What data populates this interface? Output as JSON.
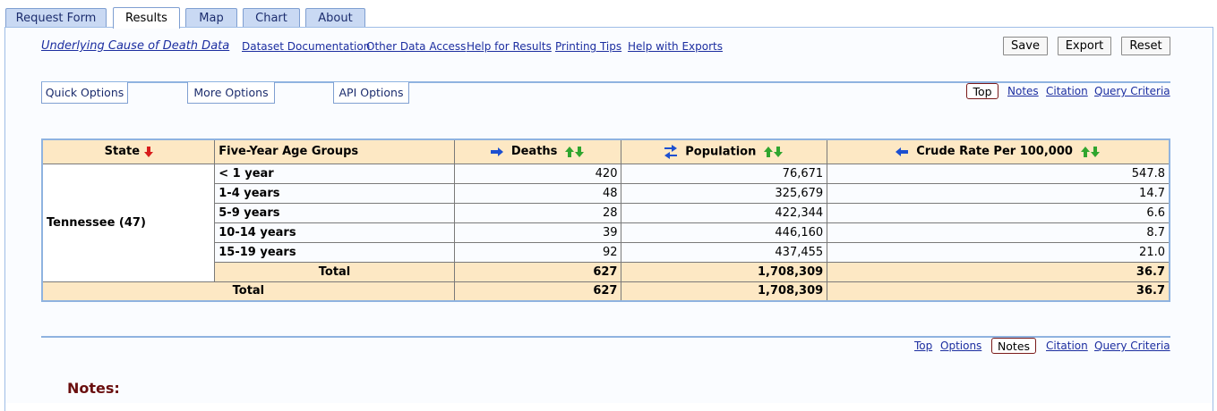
{
  "tabs": [
    "Request Form",
    "Results",
    "Map",
    "Chart",
    "About"
  ],
  "toplinks": {
    "dataset": "Underlying Cause of Death Data",
    "documentation": "Dataset Documentation",
    "other_access": "Other Data Access",
    "help_results": "Help for Results",
    "printing": "Printing Tips",
    "exports": "Help with Exports"
  },
  "actions": {
    "save": "Save",
    "export": "Export",
    "reset": "Reset"
  },
  "options": {
    "quick": "Quick Options",
    "more": "More Options",
    "api": "API Options"
  },
  "nav_top": {
    "top": "Top",
    "notes": "Notes",
    "citation": "Citation",
    "criteria": "Query Criteria"
  },
  "nav_bottom": {
    "top": "Top",
    "options": "Options",
    "notes": "Notes",
    "citation": "Citation",
    "criteria": "Query Criteria"
  },
  "table": {
    "headers": {
      "state": "State",
      "age": "Five-Year Age Groups",
      "deaths": "Deaths",
      "population": "Population",
      "rate": "Crude Rate Per 100,000"
    },
    "state_label": "Tennessee (47)",
    "rows": [
      {
        "age": "< 1 year",
        "deaths": "420",
        "population": "76,671",
        "rate": "547.8"
      },
      {
        "age": "1-4 years",
        "deaths": "48",
        "population": "325,679",
        "rate": "14.7"
      },
      {
        "age": "5-9 years",
        "deaths": "28",
        "population": "422,344",
        "rate": "6.6"
      },
      {
        "age": "10-14 years",
        "deaths": "39",
        "population": "446,160",
        "rate": "8.7"
      },
      {
        "age": "15-19 years",
        "deaths": "92",
        "population": "437,455",
        "rate": "21.0"
      }
    ],
    "subtotal": {
      "label": "Total",
      "deaths": "627",
      "population": "1,708,309",
      "rate": "36.7"
    },
    "grandtotal": {
      "label": "Total",
      "deaths": "627",
      "population": "1,708,309",
      "rate": "36.7"
    }
  },
  "notes_heading": "Notes:",
  "colors": {
    "link": "#1c2ea0",
    "header_bg": "#fde8c4",
    "border_blue": "#8fb3e0",
    "notes": "#6a0f0f"
  }
}
